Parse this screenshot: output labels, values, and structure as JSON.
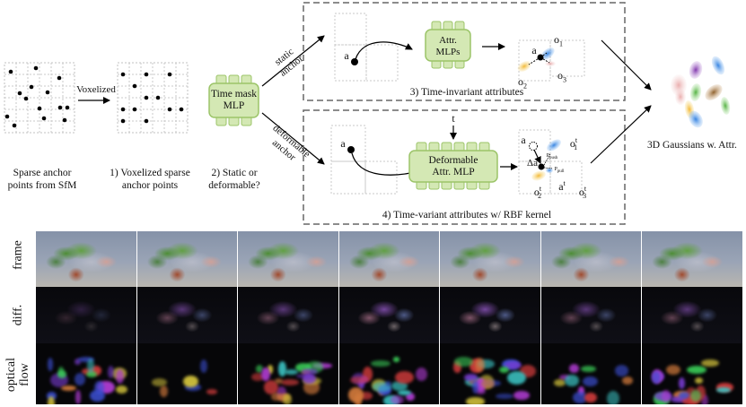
{
  "pipeline": {
    "input_caption_line1": "Sparse anchor",
    "input_caption_line2": "points from SfM",
    "voxelized_arrow_label": "Voxelized",
    "step1_line1": "1)  Voxelized sparse",
    "step1_line2": "anchor points",
    "step2_line1": "2)  Static or",
    "step2_line2": "deformable?",
    "mlp_time_mask_line1": "Time mask",
    "mlp_time_mask_line2": "MLP",
    "branch_static_line1": "static",
    "branch_static_line2": "anchor",
    "branch_deformable_line1": "deformable",
    "branch_deformable_line2": "anchor",
    "static_box_caption": "3) Time-invariant attributes",
    "static_anchor_label": "a",
    "static_mlp_line1": "Attr.",
    "static_mlp_line2": "MLPs",
    "static_o1": "o",
    "static_o1_sub": "1",
    "static_o2": "o",
    "static_o2_sub": "2",
    "static_o3": "o",
    "static_o3_sub": "3",
    "static_a": "a",
    "deform_box_caption": "4) Time-variant attributes w/ RBF kernel",
    "deform_time_label": "t",
    "deform_anchor_label": "a",
    "deform_mlp_line1": "Deformable",
    "deform_mlp_line2": "Attr. MLP",
    "deform_a": "a",
    "deform_at": "a",
    "deform_at_sup": "t",
    "deform_delta": "Δa",
    "deform_o1t": "o",
    "deform_o1t_sup": "t",
    "deform_o1t_sub": "1",
    "deform_o2t": "o",
    "deform_o2t_sup": "t",
    "deform_o2t_sub": "2",
    "deform_o3t": "o",
    "deform_o3t_sup": "t",
    "deform_o3t_sub": "3",
    "push_label": "P",
    "push_sub": "push",
    "pull_label": "P",
    "pull_sub": "pull",
    "output_caption": "3D Gaussians w. Attr."
  },
  "strip": {
    "row_labels": [
      "frame",
      "diff.",
      "optical flow"
    ],
    "row_label_optical_line1": "optical",
    "row_label_optical_line2": "flow",
    "num_columns": 7
  },
  "colors": {
    "mlp_fill": "#d4e8b4",
    "mlp_border": "#9bc468",
    "dashed_box": "#555555",
    "grid_line": "#b5b5b5",
    "gaussian_blue": "#4a90e2",
    "gaussian_yellow": "#f2c94c"
  }
}
